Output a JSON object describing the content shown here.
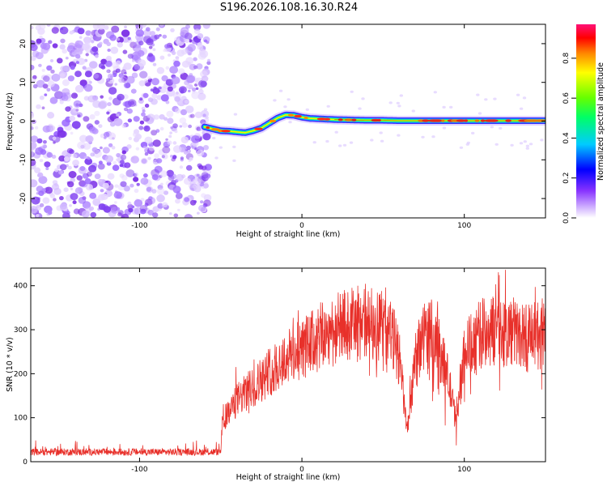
{
  "title": "S196.2026.108.16.30.R24",
  "chart_data": [
    {
      "type": "heatmap",
      "name": "spectrogram",
      "xlabel": "Height of straight line (km)",
      "ylabel": "Frequency (Hz)",
      "xlim": [
        -167,
        150
      ],
      "ylim": [
        -25,
        25
      ],
      "xticks": [
        -100,
        0,
        100
      ],
      "yticks": [
        -20,
        -10,
        0,
        10,
        20
      ],
      "noise_region_x": [
        -167,
        -60
      ],
      "signal_track": {
        "x": [
          -60,
          -55,
          -50,
          -45,
          -40,
          -35,
          -30,
          -25,
          -20,
          -15,
          -10,
          -5,
          0,
          5,
          10,
          20,
          30,
          40,
          50,
          60,
          70,
          80,
          90,
          100,
          110,
          120,
          130,
          140,
          150
        ],
        "y": [
          -1.5,
          -2.0,
          -2.5,
          -2.6,
          -2.8,
          -3.0,
          -2.5,
          -1.8,
          -0.5,
          0.8,
          1.6,
          1.5,
          1.0,
          0.7,
          0.6,
          0.4,
          0.3,
          0.2,
          0.2,
          0.1,
          0.1,
          0.1,
          0.1,
          0.1,
          0.1,
          0.1,
          0.1,
          0.1,
          0.1
        ]
      },
      "colorbar": {
        "label": "Normalized spectral amplitude",
        "range": [
          0.0,
          0.97
        ],
        "ticks": [
          0.0,
          0.2,
          0.4,
          0.6,
          0.8
        ],
        "colors": [
          "#ffffff",
          "#ccaaff",
          "#8833ff",
          "#0000ff",
          "#00ccff",
          "#00ff66",
          "#66ff00",
          "#ffff00",
          "#ff8800",
          "#ff0000",
          "#ff1177"
        ]
      }
    },
    {
      "type": "line",
      "name": "snr",
      "xlabel": "Height of straight line (km)",
      "ylabel": "SNR (10 * v/v)",
      "xlim": [
        -167,
        150
      ],
      "ylim": [
        0,
        440
      ],
      "xticks": [
        -100,
        0,
        100
      ],
      "yticks": [
        0,
        100,
        200,
        300,
        400
      ],
      "color": "#e8302a",
      "envelope": {
        "x": [
          -167,
          -50,
          -49,
          -45,
          -40,
          -30,
          -20,
          -10,
          0,
          10,
          20,
          30,
          40,
          50,
          55,
          60,
          63,
          65,
          70,
          75,
          80,
          85,
          90,
          94,
          96,
          100,
          110,
          120,
          130,
          140,
          150
        ],
        "y": [
          22,
          22,
          95,
          110,
          140,
          170,
          205,
          235,
          255,
          280,
          300,
          310,
          320,
          305,
          290,
          240,
          130,
          70,
          230,
          290,
          290,
          250,
          190,
          110,
          120,
          250,
          290,
          300,
          295,
          280,
          290
        ]
      }
    }
  ]
}
